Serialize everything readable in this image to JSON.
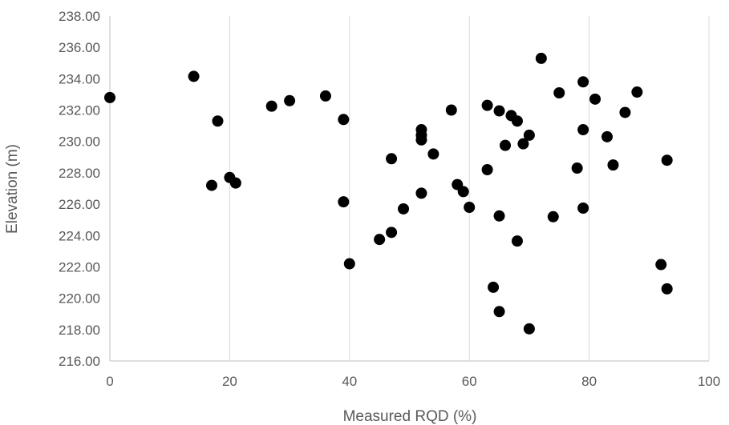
{
  "chart_data": {
    "type": "scatter",
    "xlabel": "Measured RQD (%)",
    "ylabel": "Elevation (m)",
    "xlim": [
      0,
      100
    ],
    "ylim": [
      216,
      238
    ],
    "x_ticks": [
      "0",
      "20",
      "40",
      "60",
      "80",
      "100"
    ],
    "y_ticks": [
      "216.00",
      "218.00",
      "220.00",
      "222.00",
      "224.00",
      "226.00",
      "228.00",
      "230.00",
      "232.00",
      "234.00",
      "236.00",
      "238.00"
    ],
    "grid": "vertical",
    "marker_color": "#000000",
    "points": [
      {
        "x": 0,
        "y": 232.8
      },
      {
        "x": 14,
        "y": 234.15
      },
      {
        "x": 17,
        "y": 227.2
      },
      {
        "x": 18,
        "y": 231.3
      },
      {
        "x": 20,
        "y": 227.7
      },
      {
        "x": 21,
        "y": 227.35
      },
      {
        "x": 27,
        "y": 232.25
      },
      {
        "x": 30,
        "y": 232.6
      },
      {
        "x": 36,
        "y": 232.9
      },
      {
        "x": 39,
        "y": 231.4
      },
      {
        "x": 39,
        "y": 226.15
      },
      {
        "x": 40,
        "y": 222.2
      },
      {
        "x": 45,
        "y": 223.75
      },
      {
        "x": 47,
        "y": 228.9
      },
      {
        "x": 47,
        "y": 224.2
      },
      {
        "x": 49,
        "y": 225.7
      },
      {
        "x": 52,
        "y": 230.75
      },
      {
        "x": 52,
        "y": 230.4
      },
      {
        "x": 52,
        "y": 230.1
      },
      {
        "x": 52,
        "y": 226.7
      },
      {
        "x": 54,
        "y": 229.2
      },
      {
        "x": 57,
        "y": 232.0
      },
      {
        "x": 58,
        "y": 227.25
      },
      {
        "x": 59,
        "y": 226.8
      },
      {
        "x": 60,
        "y": 225.8
      },
      {
        "x": 63,
        "y": 232.3
      },
      {
        "x": 63,
        "y": 228.2
      },
      {
        "x": 64,
        "y": 220.7
      },
      {
        "x": 65,
        "y": 231.95
      },
      {
        "x": 65,
        "y": 225.25
      },
      {
        "x": 65,
        "y": 219.15
      },
      {
        "x": 66,
        "y": 229.75
      },
      {
        "x": 67,
        "y": 231.65
      },
      {
        "x": 68,
        "y": 231.3
      },
      {
        "x": 68,
        "y": 223.65
      },
      {
        "x": 69,
        "y": 229.85
      },
      {
        "x": 70,
        "y": 230.4
      },
      {
        "x": 70,
        "y": 218.05
      },
      {
        "x": 72,
        "y": 235.3
      },
      {
        "x": 74,
        "y": 225.2
      },
      {
        "x": 75,
        "y": 233.1
      },
      {
        "x": 78,
        "y": 228.3
      },
      {
        "x": 79,
        "y": 233.8
      },
      {
        "x": 79,
        "y": 230.75
      },
      {
        "x": 79,
        "y": 225.75
      },
      {
        "x": 81,
        "y": 232.7
      },
      {
        "x": 83,
        "y": 230.3
      },
      {
        "x": 84,
        "y": 228.5
      },
      {
        "x": 86,
        "y": 231.85
      },
      {
        "x": 88,
        "y": 233.15
      },
      {
        "x": 92,
        "y": 222.15
      },
      {
        "x": 93,
        "y": 228.8
      },
      {
        "x": 93,
        "y": 220.6
      }
    ]
  }
}
